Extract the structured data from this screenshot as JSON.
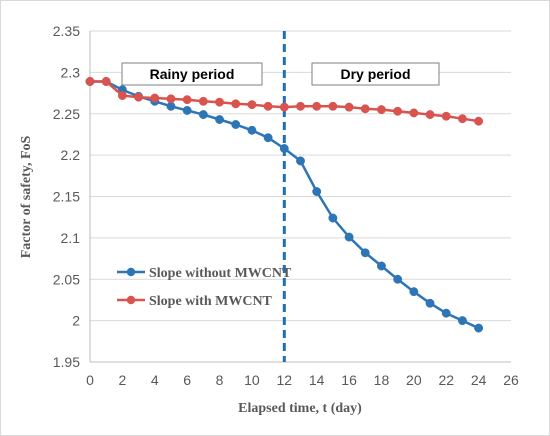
{
  "chart_data": {
    "type": "line",
    "xlabel": "Elapsed time, t (day)",
    "ylabel": "Factor of safety, FoS",
    "xlim": [
      0,
      26
    ],
    "ylim": [
      1.95,
      2.35
    ],
    "x_ticks": [
      "0",
      "2",
      "4",
      "6",
      "8",
      "10",
      "12",
      "14",
      "16",
      "18",
      "20",
      "22",
      "24",
      "26"
    ],
    "y_ticks": [
      "1.95",
      "2",
      "2.05",
      "2.1",
      "2.15",
      "2.2",
      "2.25",
      "2.3",
      "2.35"
    ],
    "grid": "horizontal",
    "legend_position": "bottom-left",
    "divider_x": 12,
    "divider_color": "#1f6fb5",
    "annotations": [
      {
        "id": "rainy",
        "text": "Rainy period"
      },
      {
        "id": "dry",
        "text": "Dry period"
      }
    ],
    "series": [
      {
        "name": "Slope without MWCNT",
        "color": "#2e75b6",
        "x": [
          0,
          1,
          2,
          3,
          4,
          5,
          6,
          7,
          8,
          9,
          10,
          11,
          12,
          13,
          14,
          15,
          16,
          17,
          18,
          19,
          20,
          21,
          22,
          23,
          24
        ],
        "values": [
          2.289,
          2.289,
          2.279,
          2.271,
          2.265,
          2.259,
          2.254,
          2.249,
          2.243,
          2.237,
          2.23,
          2.221,
          2.208,
          2.193,
          2.156,
          2.124,
          2.101,
          2.082,
          2.066,
          2.05,
          2.035,
          2.021,
          2.009,
          2.0,
          1.991
        ]
      },
      {
        "name": "Slope with MWCNT",
        "color": "#d9534f",
        "x": [
          0,
          1,
          2,
          3,
          4,
          5,
          6,
          7,
          8,
          9,
          10,
          11,
          12,
          13,
          14,
          15,
          16,
          17,
          18,
          19,
          20,
          21,
          22,
          23,
          24
        ],
        "values": [
          2.289,
          2.289,
          2.272,
          2.27,
          2.269,
          2.268,
          2.267,
          2.265,
          2.264,
          2.262,
          2.261,
          2.259,
          2.258,
          2.259,
          2.259,
          2.259,
          2.258,
          2.256,
          2.255,
          2.253,
          2.251,
          2.249,
          2.247,
          2.244,
          2.241
        ]
      }
    ]
  }
}
